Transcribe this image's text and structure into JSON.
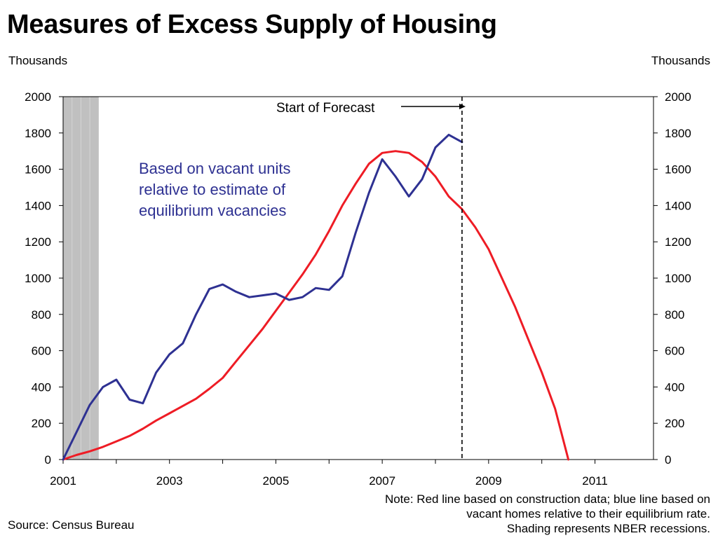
{
  "title": "Measures of Excess Supply of Housing",
  "left_unit": "Thousands",
  "right_unit": "Thousands",
  "note_lines": [
    "Note: Red line based on construction data; blue line based on",
    "vacant homes relative to their equilibrium rate.",
    "Shading represents NBER recessions."
  ],
  "source": "Source: Census Bureau",
  "colors": {
    "red_series": "#ee1c25",
    "blue_series": "#2e3192",
    "recession": "#c0c0c0"
  },
  "chart_data": {
    "type": "line",
    "title": "Measures of Excess Supply of Housing",
    "ylabel_left": "Thousands",
    "ylabel_right": "Thousands",
    "xlim": [
      2001,
      2012.1
    ],
    "ylim": [
      0,
      2000
    ],
    "x_ticks": [
      2001,
      2003,
      2005,
      2007,
      2009,
      2011
    ],
    "x_minor_ticks": [
      2002,
      2004,
      2006,
      2008,
      2010
    ],
    "y_ticks": [
      0,
      200,
      400,
      600,
      800,
      1000,
      1200,
      1400,
      1600,
      1800,
      2000
    ],
    "grid": false,
    "recession_shading": [
      2001.0,
      2001.67
    ],
    "forecast_start": 2008.5,
    "forecast_label": "Start of Forecast",
    "annotation": [
      "Based on vacant units",
      "relative to estimate of",
      "equilibrium vacancies"
    ],
    "series": [
      {
        "key": "construction",
        "color": "#ee1c25",
        "x": [
          2001.0,
          2001.25,
          2001.5,
          2001.75,
          2002.0,
          2002.25,
          2002.5,
          2002.75,
          2003.0,
          2003.25,
          2003.5,
          2003.75,
          2004.0,
          2004.25,
          2004.5,
          2004.75,
          2005.0,
          2005.25,
          2005.5,
          2005.75,
          2006.0,
          2006.25,
          2006.5,
          2006.75,
          2007.0,
          2007.25,
          2007.5,
          2007.75,
          2008.0,
          2008.25,
          2008.5,
          2008.75,
          2009.0,
          2009.25,
          2009.5,
          2009.75,
          2010.0,
          2010.25,
          2010.5
        ],
        "values": [
          0,
          25,
          45,
          70,
          100,
          130,
          170,
          215,
          255,
          295,
          335,
          390,
          450,
          540,
          630,
          720,
          820,
          920,
          1020,
          1130,
          1260,
          1400,
          1520,
          1630,
          1690,
          1700,
          1690,
          1640,
          1560,
          1450,
          1380,
          1280,
          1160,
          1000,
          840,
          660,
          480,
          280,
          0
        ]
      },
      {
        "key": "vacancies",
        "color": "#2e3192",
        "x": [
          2001.0,
          2001.25,
          2001.5,
          2001.75,
          2002.0,
          2002.25,
          2002.5,
          2002.75,
          2003.0,
          2003.25,
          2003.5,
          2003.75,
          2004.0,
          2004.25,
          2004.5,
          2004.75,
          2005.0,
          2005.25,
          2005.5,
          2005.75,
          2006.0,
          2006.25,
          2006.5,
          2006.75,
          2007.0,
          2007.25,
          2007.5,
          2007.75,
          2008.0,
          2008.25,
          2008.5
        ],
        "values": [
          0,
          150,
          300,
          400,
          440,
          330,
          310,
          480,
          580,
          640,
          800,
          940,
          965,
          925,
          895,
          905,
          915,
          880,
          895,
          945,
          935,
          1010,
          1250,
          1470,
          1655,
          1560,
          1450,
          1545,
          1720,
          1790,
          1750
        ]
      }
    ]
  }
}
